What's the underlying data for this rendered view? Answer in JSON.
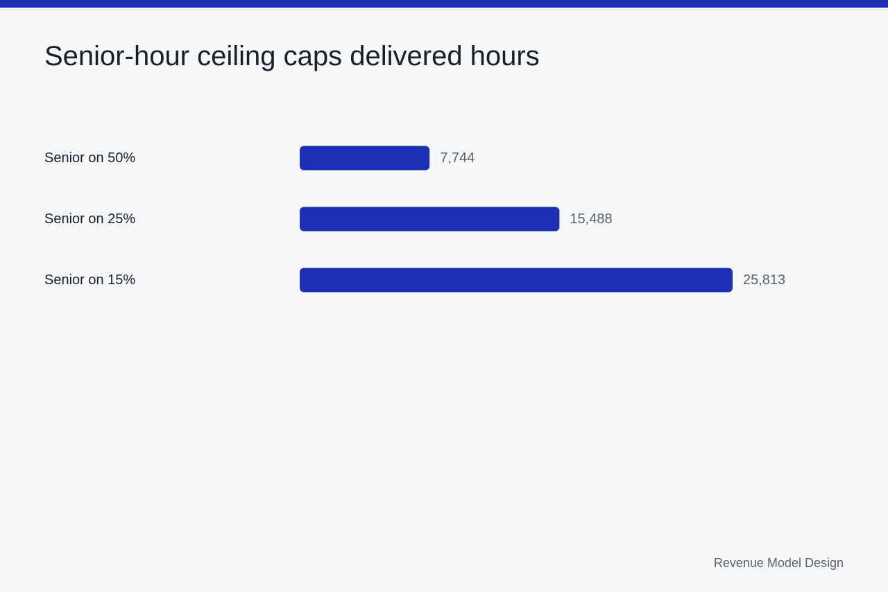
{
  "header": {
    "title": "Senior-hour ceiling caps delivered hours"
  },
  "footer": {
    "source": "Revenue Model Design"
  },
  "colors": {
    "accent": "#1e31b6",
    "background": "#f6f7f9",
    "label_text": "#17202a",
    "value_text": "#556269"
  },
  "chart_data": {
    "type": "bar",
    "orientation": "horizontal",
    "title": "Senior-hour ceiling caps delivered hours",
    "categories": [
      "Senior on 50%",
      "Senior on 25%",
      "Senior on 15%"
    ],
    "values": [
      7744,
      15488,
      25813
    ],
    "value_labels": [
      "7,744",
      "15,488",
      "25,813"
    ],
    "xlim": [
      0,
      25813
    ],
    "grid": false,
    "legend": "none"
  }
}
